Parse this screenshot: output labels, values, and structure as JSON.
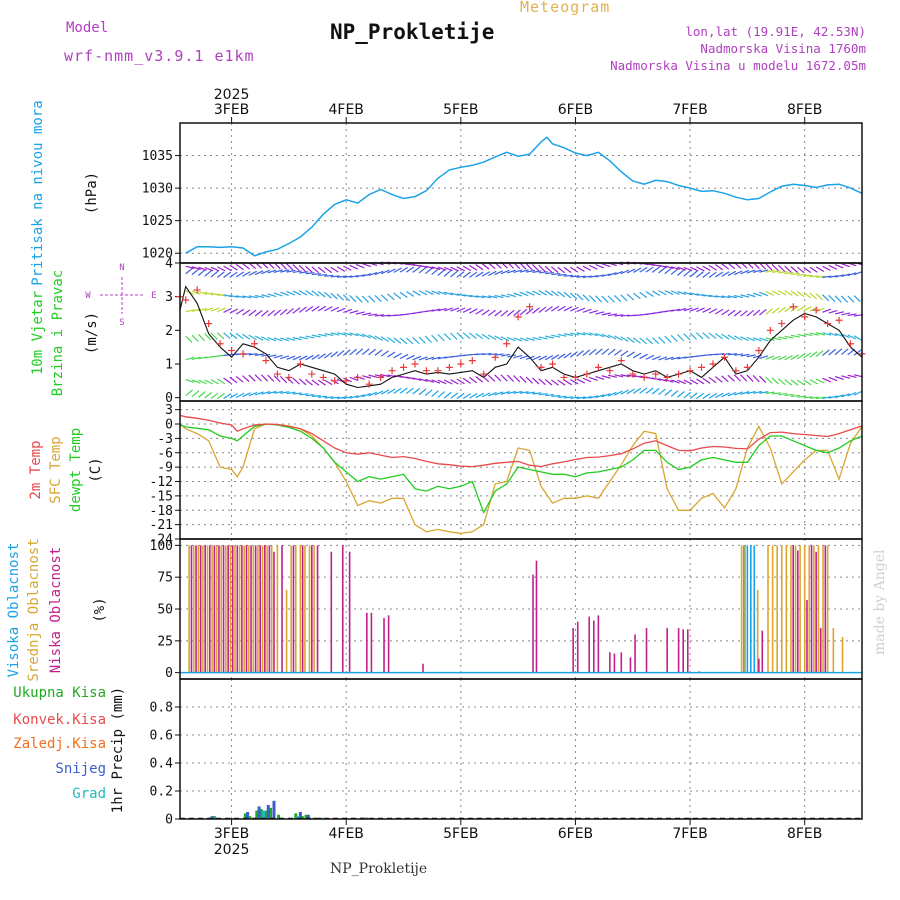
{
  "header": {
    "title": "NP_Prokletije",
    "subtitle": "Meteogram",
    "model_label": "Model",
    "model_name": "wrf-nmm_v3.9.1 e1km",
    "lonlat": "lon,lat (19.91E, 42.53N)",
    "elevation": "Nadmorska Visina 1760m",
    "elevation_model": "Nadmorska Visina u modelu 1672.05m"
  },
  "footer": {
    "station": "NP_Prokletije",
    "credit": "made by Angel"
  },
  "colors": {
    "pressure": "#1aa3e8",
    "temp2m": "#e84a4a",
    "sfc_temp": "#d9a632",
    "dewpoint": "#22cc22",
    "high_cloud": "#1aa3e8",
    "mid_cloud": "#d9a632",
    "low_cloud": "#c0208a",
    "wind_speed": "#111111",
    "wind_dir": "#e83a3a",
    "total_precip": "#22aa22",
    "snow": "#3a5fcd",
    "grad": "#22bbbb"
  },
  "chart_data": [
    {
      "id": "pressure",
      "type": "line",
      "ylabel": [
        "Pritisak na nivou mora",
        "(hPa)"
      ],
      "ylim": [
        1018.5,
        1040
      ],
      "yticks": [
        "1020",
        "1025",
        "1030",
        "1035"
      ],
      "x_top_ticks": [
        "3FEB",
        "4FEB",
        "5FEB",
        "6FEB",
        "7FEB",
        "8FEB"
      ],
      "x_top_year": "2025",
      "x_days": [
        2.6,
        2.7,
        2.8,
        2.9,
        3.0,
        3.1,
        3.2,
        3.3,
        3.4,
        3.5,
        3.6,
        3.7,
        3.8,
        3.9,
        4.0,
        4.1,
        4.2,
        4.3,
        4.4,
        4.5,
        4.6,
        4.7,
        4.8,
        4.9,
        5.0,
        5.1,
        5.2,
        5.3,
        5.4,
        5.5,
        5.6,
        5.7,
        5.75,
        5.8,
        5.9,
        6.0,
        6.1,
        6.2,
        6.3,
        6.4,
        6.5,
        6.6,
        6.7,
        6.8,
        6.9,
        7.0,
        7.1,
        7.2,
        7.3,
        7.4,
        7.5,
        7.6,
        7.7,
        7.8,
        7.9,
        8.0,
        8.1,
        8.2,
        8.3,
        8.4,
        8.5
      ],
      "series": [
        {
          "values": [
            1020.0,
            1021.0,
            1021.0,
            1020.9,
            1021.0,
            1020.8,
            1019.6,
            1020.2,
            1020.6,
            1021.5,
            1022.5,
            1024.0,
            1026.0,
            1027.5,
            1028.2,
            1027.7,
            1029.0,
            1029.8,
            1029.0,
            1028.4,
            1028.7,
            1029.6,
            1031.5,
            1032.8,
            1033.2,
            1033.5,
            1034.0,
            1034.8,
            1035.5,
            1034.9,
            1035.2,
            1037.1,
            1037.8,
            1036.8,
            1036.2,
            1035.4,
            1035.0,
            1035.5,
            1034.2,
            1032.5,
            1031.1,
            1030.6,
            1031.2,
            1031.0,
            1030.4,
            1030.0,
            1029.5,
            1029.6,
            1029.2,
            1028.6,
            1028.2,
            1028.4,
            1029.4,
            1030.3,
            1030.6,
            1030.4,
            1030.1,
            1030.5,
            1030.6,
            1030.0,
            1029.2
          ]
        }
      ]
    },
    {
      "id": "wind",
      "type": "line",
      "ylabel": [
        "10m Vjetar",
        "Brzina i Pravac",
        "(m/s)"
      ],
      "legend_compass": [
        "N",
        "W",
        "E",
        "S"
      ],
      "ylim": [
        -0.1,
        4.0
      ],
      "yticks": [
        "0",
        "1",
        "2",
        "3",
        "4"
      ],
      "x_days": [
        2.55,
        2.6,
        2.7,
        2.8,
        2.9,
        3.0,
        3.1,
        3.2,
        3.3,
        3.4,
        3.5,
        3.6,
        3.7,
        3.8,
        3.9,
        4.0,
        4.1,
        4.2,
        4.3,
        4.4,
        4.5,
        4.6,
        4.7,
        4.8,
        4.9,
        5.0,
        5.1,
        5.2,
        5.3,
        5.4,
        5.5,
        5.6,
        5.7,
        5.8,
        5.9,
        6.0,
        6.1,
        6.2,
        6.3,
        6.4,
        6.5,
        6.6,
        6.7,
        6.8,
        6.9,
        7.0,
        7.1,
        7.2,
        7.3,
        7.4,
        7.5,
        7.6,
        7.7,
        7.8,
        7.9,
        8.0,
        8.1,
        8.2,
        8.3,
        8.4,
        8.5
      ],
      "series": [
        {
          "name": "speed",
          "values": [
            2.6,
            3.3,
            2.8,
            1.9,
            1.5,
            1.2,
            1.6,
            1.5,
            1.3,
            0.9,
            0.8,
            1.0,
            0.9,
            0.8,
            0.7,
            0.4,
            0.3,
            0.35,
            0.4,
            0.6,
            0.7,
            0.8,
            0.7,
            0.75,
            0.7,
            0.75,
            0.8,
            0.6,
            0.9,
            1.0,
            1.5,
            1.2,
            0.8,
            0.9,
            0.7,
            0.6,
            0.7,
            0.8,
            0.9,
            1.0,
            0.8,
            0.7,
            0.8,
            0.6,
            0.7,
            0.8,
            0.6,
            0.9,
            1.2,
            0.7,
            0.8,
            1.2,
            1.7,
            2.0,
            2.3,
            2.5,
            2.4,
            2.2,
            2.0,
            1.5,
            1.2
          ]
        },
        {
          "name": "direction",
          "values": [
            3.0,
            2.9,
            3.2,
            2.2,
            1.6,
            1.4,
            1.3,
            1.6,
            1.1,
            0.7,
            0.6,
            1.0,
            0.7,
            0.6,
            0.5,
            0.5,
            0.6,
            0.4,
            0.6,
            0.8,
            0.9,
            1.0,
            0.8,
            0.8,
            0.9,
            1.0,
            1.1,
            0.7,
            1.2,
            1.6,
            2.4,
            2.7,
            0.9,
            1.0,
            0.6,
            0.6,
            0.7,
            0.9,
            0.8,
            1.1,
            0.7,
            0.6,
            0.7,
            0.6,
            0.7,
            0.8,
            0.9,
            1.0,
            1.2,
            0.8,
            0.9,
            1.4,
            2.0,
            2.2,
            2.7,
            2.4,
            2.6,
            2.2,
            2.3,
            1.6,
            1.3
          ]
        }
      ]
    },
    {
      "id": "temperature",
      "type": "line",
      "ylabel": [
        "2m Temp",
        "SFC Temp",
        "dewpt Temp",
        "(C)"
      ],
      "ylim": [
        -24,
        4.8
      ],
      "yticks": [
        "3",
        "0",
        "-3",
        "-6",
        "-9",
        "-12",
        "-15",
        "-18",
        "-21",
        "-24"
      ],
      "x_days": [
        2.55,
        2.6,
        2.7,
        2.8,
        2.9,
        3.0,
        3.05,
        3.1,
        3.2,
        3.3,
        3.4,
        3.5,
        3.6,
        3.7,
        3.8,
        3.9,
        4.0,
        4.1,
        4.2,
        4.3,
        4.4,
        4.5,
        4.6,
        4.7,
        4.8,
        4.9,
        5.0,
        5.1,
        5.2,
        5.3,
        5.4,
        5.5,
        5.6,
        5.7,
        5.8,
        5.9,
        6.0,
        6.1,
        6.2,
        6.3,
        6.4,
        6.5,
        6.6,
        6.7,
        6.8,
        6.9,
        7.0,
        7.1,
        7.2,
        7.3,
        7.4,
        7.5,
        7.6,
        7.7,
        7.8,
        7.9,
        8.0,
        8.1,
        8.2,
        8.3,
        8.4,
        8.5
      ],
      "series": [
        {
          "name": "2m Temp",
          "values": [
            1.8,
            1.5,
            1.2,
            0.8,
            0.2,
            -0.2,
            -1.5,
            -1.0,
            -0.2,
            0.0,
            -0.1,
            -0.5,
            -1.0,
            -2.0,
            -3.5,
            -5.0,
            -6.0,
            -6.3,
            -6.0,
            -6.5,
            -7.0,
            -6.8,
            -7.2,
            -7.8,
            -8.3,
            -8.5,
            -8.8,
            -8.9,
            -8.6,
            -8.2,
            -8.0,
            -7.8,
            -8.6,
            -8.9,
            -8.3,
            -7.9,
            -7.4,
            -7.0,
            -6.9,
            -6.6,
            -6.2,
            -5.2,
            -4.0,
            -3.5,
            -4.5,
            -5.5,
            -5.6,
            -5.0,
            -4.7,
            -4.8,
            -5.1,
            -5.2,
            -3.2,
            -1.8,
            -1.7,
            -2.0,
            -2.2,
            -2.4,
            -2.6,
            -2.0,
            -1.2,
            -0.4
          ]
        },
        {
          "name": "SFC Temp",
          "values": [
            0.0,
            -1.0,
            -2.0,
            -3.5,
            -9.0,
            -9.5,
            -11.0,
            -9.0,
            -1.0,
            0.0,
            -0.1,
            -0.4,
            -1.0,
            -2.5,
            -5.0,
            -8.0,
            -12.0,
            -17.0,
            -16.0,
            -16.5,
            -15.5,
            -15.5,
            -21.0,
            -22.5,
            -22.0,
            -22.5,
            -22.8,
            -22.5,
            -21.0,
            -12.5,
            -12.0,
            -5.0,
            -5.5,
            -13.0,
            -16.5,
            -15.5,
            -15.5,
            -15.0,
            -15.5,
            -12.0,
            -8.5,
            -4.5,
            -1.5,
            -2.0,
            -13.5,
            -18.0,
            -18.0,
            -15.5,
            -14.5,
            -17.5,
            -13.5,
            -5.0,
            -0.5,
            -5.0,
            -12.5,
            -10.0,
            -7.5,
            -5.5,
            -5.5,
            -11.5,
            -4.0,
            -0.5
          ]
        },
        {
          "name": "dewpt Temp",
          "values": [
            -0.2,
            -0.6,
            -0.9,
            -1.2,
            -2.5,
            -3.0,
            -3.5,
            -2.5,
            -0.5,
            0.0,
            -0.2,
            -0.7,
            -1.5,
            -3.0,
            -5.0,
            -8.0,
            -10.0,
            -12.0,
            -11.0,
            -11.5,
            -11.0,
            -10.5,
            -13.5,
            -14.0,
            -13.0,
            -13.5,
            -13.0,
            -12.0,
            -18.5,
            -14.0,
            -12.5,
            -9.0,
            -9.5,
            -10.0,
            -10.5,
            -10.5,
            -11.0,
            -10.2,
            -10.0,
            -9.5,
            -9.0,
            -7.5,
            -5.5,
            -5.5,
            -8.0,
            -9.5,
            -9.0,
            -7.5,
            -7.0,
            -7.5,
            -8.0,
            -8.0,
            -4.5,
            -2.5,
            -2.5,
            -3.5,
            -4.5,
            -5.5,
            -6.0,
            -5.0,
            -3.5,
            -2.5
          ]
        }
      ]
    },
    {
      "id": "clouds",
      "type": "bar",
      "ylabel": [
        "Visoka Oblacnost",
        "Srednja Oblacnost",
        "Niska Oblacnost",
        "(%)"
      ],
      "ylim": [
        -5,
        105
      ],
      "yticks": [
        "100",
        "75",
        "50",
        "25",
        "0"
      ],
      "series": [
        {
          "name": "Visoka Oblacnost",
          "x": [
            7.47,
            7.5,
            7.53,
            7.56
          ],
          "values": [
            100,
            100,
            100,
            100
          ]
        },
        {
          "name": "Srednja Oblacnost",
          "x": [
            2.63,
            2.67,
            2.71,
            2.75,
            2.79,
            2.83,
            2.87,
            2.91,
            2.95,
            2.99,
            3.03,
            3.07,
            3.11,
            3.15,
            3.19,
            3.23,
            3.27,
            3.31,
            3.35,
            3.4,
            3.48,
            3.52,
            3.56,
            3.6,
            3.64,
            3.68,
            3.72,
            7.45,
            7.48,
            7.59,
            7.68,
            7.72,
            7.76,
            7.8,
            7.84,
            7.88,
            7.92,
            7.96,
            8.0,
            8.04,
            8.08,
            8.12,
            8.16,
            8.2,
            8.25,
            8.33
          ],
          "values": [
            100,
            100,
            100,
            100,
            100,
            100,
            100,
            100,
            100,
            100,
            100,
            100,
            100,
            100,
            100,
            100,
            100,
            100,
            100,
            100,
            65,
            100,
            100,
            100,
            100,
            100,
            100,
            100,
            100,
            65,
            100,
            100,
            100,
            100,
            100,
            100,
            100,
            100,
            100,
            100,
            100,
            100,
            100,
            100,
            35,
            28
          ]
        },
        {
          "name": "Niska Oblacnost",
          "x": [
            2.65,
            2.69,
            2.73,
            2.77,
            2.81,
            2.85,
            2.89,
            2.93,
            2.97,
            3.01,
            3.05,
            3.09,
            3.13,
            3.17,
            3.21,
            3.25,
            3.29,
            3.33,
            3.37,
            3.44,
            3.54,
            3.62,
            3.7,
            3.75,
            3.87,
            3.97,
            4.03,
            4.18,
            4.22,
            4.33,
            4.37,
            4.67,
            5.63,
            5.66,
            5.98,
            6.02,
            6.12,
            6.16,
            6.2,
            6.3,
            6.34,
            6.4,
            6.48,
            6.52,
            6.62,
            6.8,
            6.9,
            6.94,
            6.98,
            7.08,
            7.6,
            7.63,
            7.9,
            7.94,
            8.02,
            8.06,
            8.1,
            8.14,
            8.18
          ],
          "values": [
            100,
            100,
            100,
            100,
            100,
            100,
            100,
            100,
            100,
            100,
            100,
            100,
            100,
            100,
            100,
            100,
            100,
            100,
            95,
            100,
            100,
            100,
            100,
            100,
            95,
            100,
            95,
            47,
            47,
            43,
            45,
            7,
            77,
            88,
            35,
            40,
            44,
            41,
            45,
            16,
            15,
            16,
            12,
            30,
            35,
            35,
            35,
            34,
            34,
            1,
            11,
            33,
            100,
            96,
            57,
            100,
            95,
            35,
            100
          ]
        }
      ]
    },
    {
      "id": "precip",
      "type": "bar",
      "ylabel": [
        "1hr Precip (mm)"
      ],
      "legend": [
        "Ukupna Kisa",
        "Konvek.Kisa",
        "Zaledj.Kisa",
        "Snijeg",
        "Grad"
      ],
      "ylim": [
        0,
        1.0
      ],
      "yticks": [
        "0.8",
        "0.6",
        "0.4",
        "0.2",
        "0"
      ],
      "x_bottom_ticks": [
        "3FEB",
        "4FEB",
        "5FEB",
        "6FEB",
        "7FEB",
        "8FEB"
      ],
      "x_bottom_year": "2025",
      "series": [
        {
          "name": "Ukupna Kisa",
          "x": [
            2.82,
            2.85,
            3.12,
            3.16,
            3.22,
            3.26,
            3.3,
            3.34,
            3.41,
            3.56,
            3.62,
            3.65,
            3.72,
            3.78
          ],
          "values": [
            0.01,
            0.02,
            0.04,
            0.02,
            0.06,
            0.07,
            0.06,
            0.08,
            0.03,
            0.04,
            0.02,
            0.03,
            0.01,
            0.01
          ]
        },
        {
          "name": "Snijeg",
          "x": [
            2.83,
            3.14,
            3.24,
            3.32,
            3.37,
            3.6,
            3.67,
            4.14,
            4.18
          ],
          "values": [
            0.02,
            0.05,
            0.09,
            0.1,
            0.13,
            0.05,
            0.03,
            0.01,
            0.01
          ]
        },
        {
          "name": "Grad",
          "x": [
            3.28,
            3.58
          ],
          "values": [
            0.06,
            0.02
          ]
        }
      ]
    }
  ]
}
